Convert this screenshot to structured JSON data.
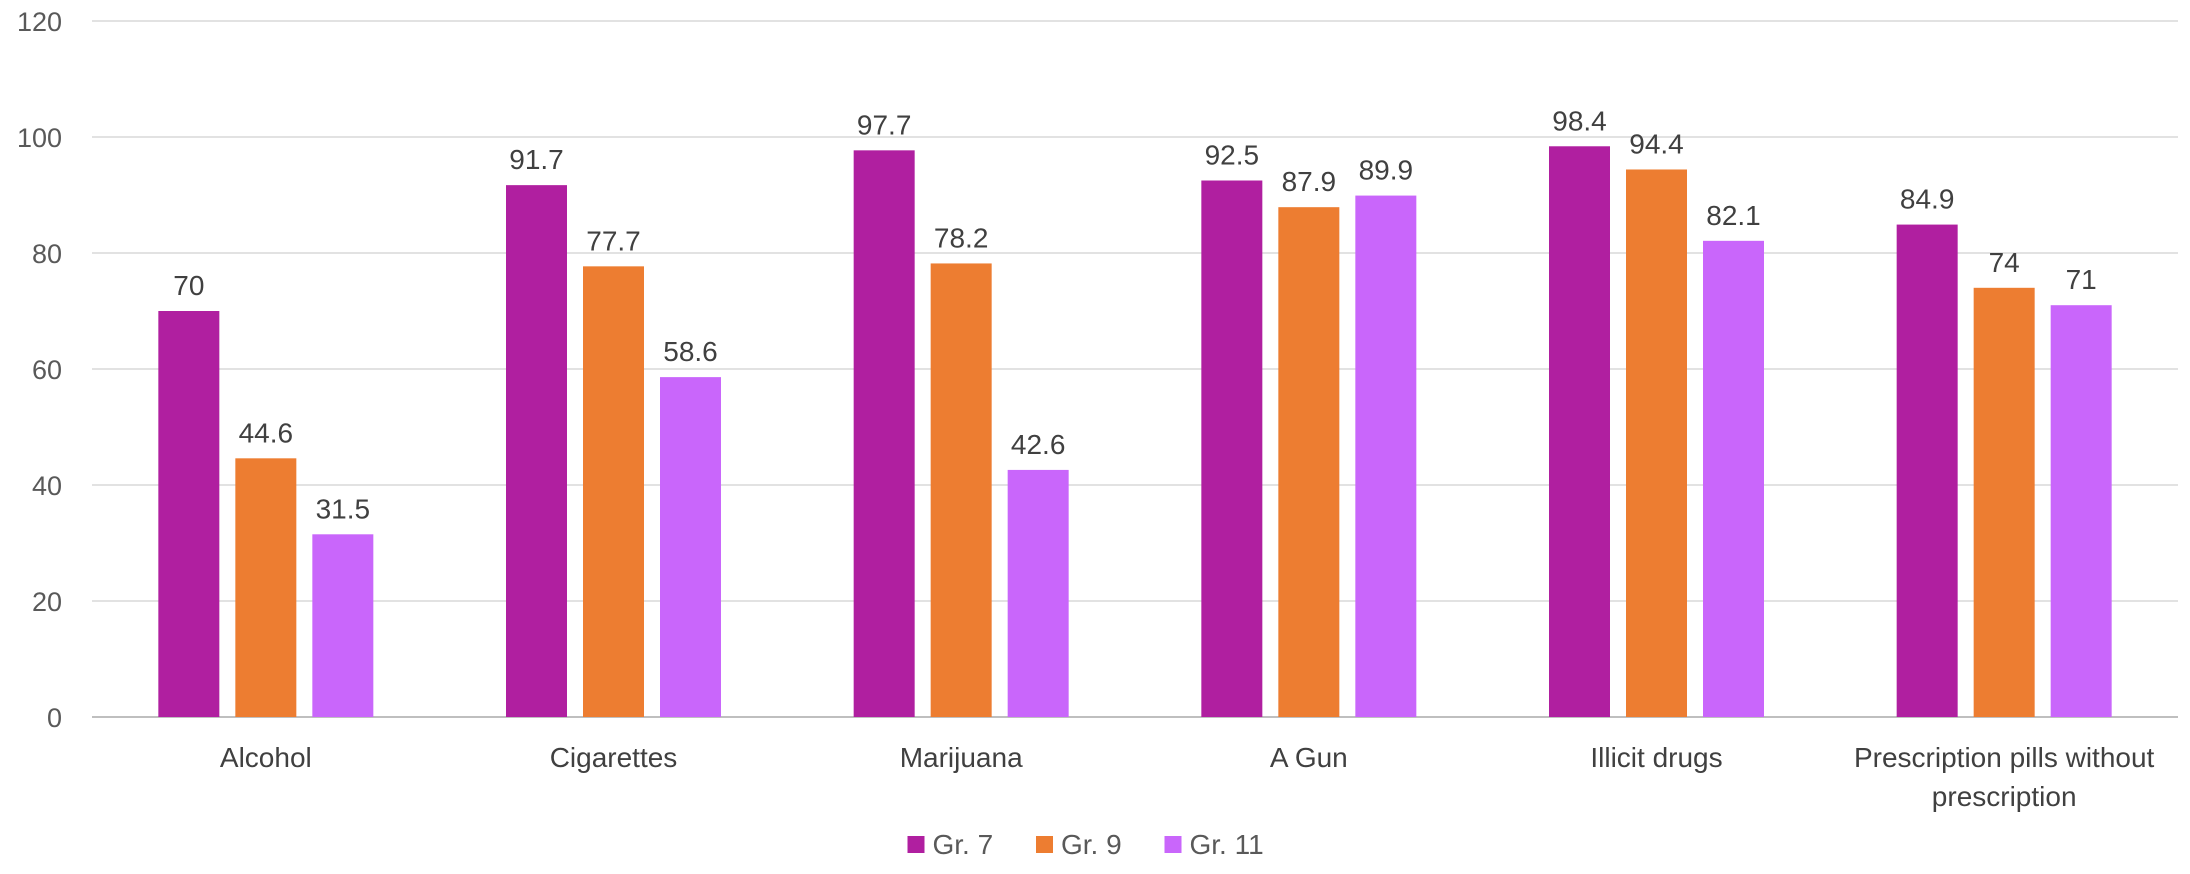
{
  "chart_data": {
    "type": "bar",
    "title": "",
    "xlabel": "",
    "ylabel": "",
    "ylim": [
      0,
      120
    ],
    "yticks": [
      0,
      20,
      40,
      60,
      80,
      100,
      120
    ],
    "grid": true,
    "legend_position": "bottom",
    "categories": [
      [
        "Alcohol"
      ],
      [
        "Cigarettes"
      ],
      [
        "Marijuana"
      ],
      [
        "A Gun"
      ],
      [
        "Illicit drugs"
      ],
      [
        "Prescription pills without",
        "prescription"
      ]
    ],
    "series": [
      {
        "name": "Gr. 7",
        "color": "#b01fa0",
        "values": [
          70,
          91.7,
          97.7,
          92.5,
          98.4,
          84.9
        ]
      },
      {
        "name": "Gr. 9",
        "color": "#ed7d31",
        "values": [
          44.6,
          77.7,
          78.2,
          87.9,
          94.4,
          74
        ]
      },
      {
        "name": "Gr. 11",
        "color": "#c966fb",
        "values": [
          31.5,
          58.6,
          42.6,
          89.9,
          82.1,
          71
        ]
      }
    ]
  }
}
